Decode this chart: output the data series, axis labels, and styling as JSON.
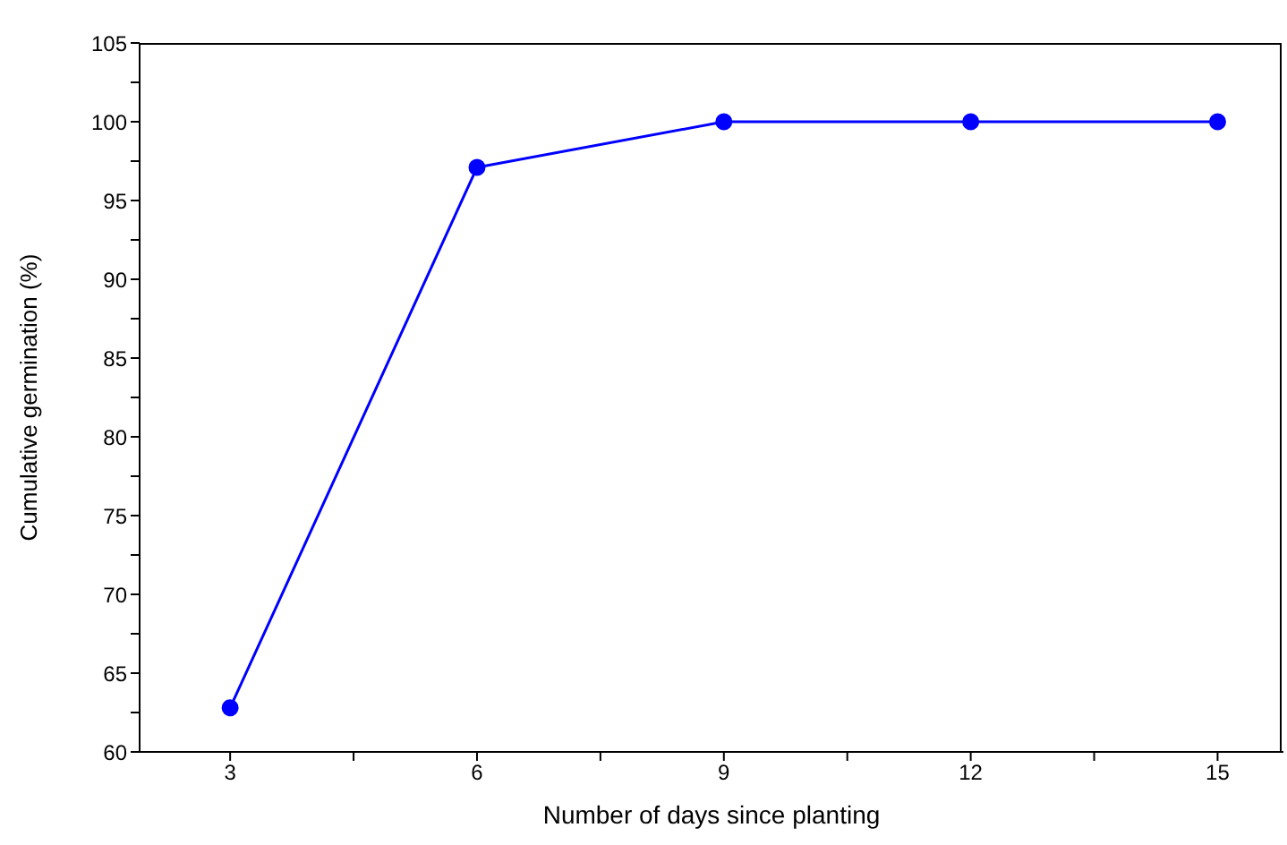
{
  "chart_data": {
    "type": "line",
    "xlabel": "Number of days since planting",
    "ylabel": "Cumulative germination (%)",
    "x": [
      3,
      6,
      9,
      12,
      15
    ],
    "series": [
      {
        "color": "#0000ff",
        "values": [
          62.8,
          97.1,
          100,
          100,
          100
        ]
      }
    ],
    "xlim": [
      1.9,
      15.8
    ],
    "xticks": [
      3,
      {
        "value": 4.5,
        "label": null
      },
      6,
      {
        "value": 7.5,
        "label": null
      },
      9,
      {
        "value": 10.5,
        "label": null
      },
      12,
      {
        "value": 13.5,
        "label": null
      },
      15
    ],
    "ylim": [
      60,
      105
    ],
    "yticks": [
      60,
      {
        "value": 62.5,
        "label": null
      },
      65,
      {
        "value": 67.5,
        "label": null
      },
      70,
      {
        "value": 72.5,
        "label": null
      },
      75,
      {
        "value": 77.5,
        "label": null
      },
      80,
      {
        "value": 82.5,
        "label": null
      },
      85,
      {
        "value": 87.5,
        "label": null
      },
      90,
      {
        "value": 92.5,
        "label": null
      },
      95,
      {
        "value": 97.5,
        "label": null
      },
      100,
      {
        "value": 102.5,
        "label": null
      },
      105
    ],
    "grid": false,
    "legend": false,
    "marker": "circle",
    "line_style": "solid"
  }
}
